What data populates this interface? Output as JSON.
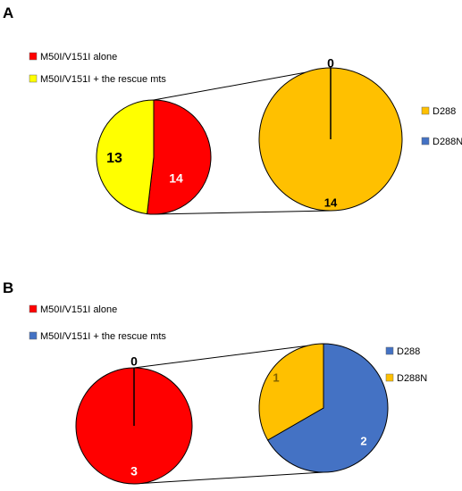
{
  "chart_data": [
    {
      "panel": "A",
      "type": "pie",
      "left_pie": {
        "slices": [
          {
            "label": "M50I/V151I alone",
            "value": 14,
            "color": "#ff0000",
            "text_color": "#ffffff"
          },
          {
            "label": "M50I/V151I + the rescue mts",
            "value": 13,
            "color": "#ffff00",
            "text_color": "#000000"
          }
        ]
      },
      "right_pie": {
        "slices": [
          {
            "label": "D288",
            "value": 14,
            "color": "#ffc000",
            "text_color": "#000000"
          },
          {
            "label": "D288N",
            "value": 0,
            "color": "#4472c4",
            "text_color": "#000000"
          }
        ]
      },
      "left_legend": [
        {
          "label": "M50I/V151I alone",
          "color": "#ff0000"
        },
        {
          "label": "M50I/V151I + the rescue mts",
          "color": "#ffff00"
        }
      ],
      "right_legend": [
        {
          "label": "D288",
          "color": "#ffc000"
        },
        {
          "label": "D288N",
          "color": "#4472c4"
        }
      ]
    },
    {
      "panel": "B",
      "type": "pie",
      "left_pie": {
        "slices": [
          {
            "label": "M50I/V151I alone",
            "value": 3,
            "color": "#ff0000",
            "text_color": "#ffffff"
          },
          {
            "label": "M50I/V151I + the rescue mts",
            "value": 0,
            "color": "#4472c4",
            "text_color": "#000000"
          }
        ]
      },
      "right_pie": {
        "slices": [
          {
            "label": "D288",
            "value": 2,
            "color": "#4472c4",
            "text_color": "#ffffff"
          },
          {
            "label": "D288N",
            "value": 1,
            "color": "#ffc000",
            "text_color": "#7f6000"
          }
        ]
      },
      "left_legend": [
        {
          "label": "M50I/V151I alone",
          "color": "#ff0000"
        },
        {
          "label": "M50I/V151I + the rescue mts",
          "color": "#4472c4"
        }
      ],
      "right_legend": [
        {
          "label": "D288",
          "color": "#4472c4"
        },
        {
          "label": "D288N",
          "color": "#ffc000"
        }
      ]
    }
  ]
}
